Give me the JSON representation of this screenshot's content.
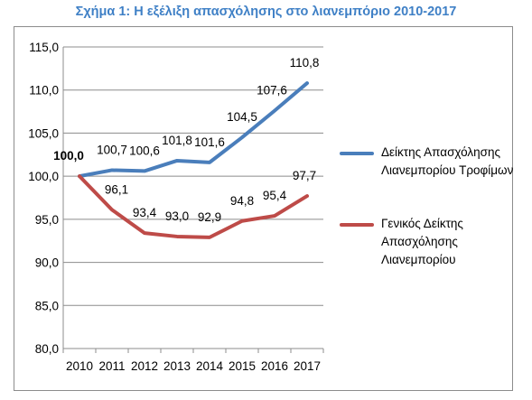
{
  "chart_data": {
    "type": "line",
    "title": "Σχήμα 1: Η εξέλιξη απασχόλησης στο λιανεμπόριο 2010-2017",
    "categories": [
      "2010",
      "2011",
      "2012",
      "2013",
      "2014",
      "2015",
      "2016",
      "2017"
    ],
    "ylim": [
      80,
      115
    ],
    "yticks": [
      "80,0",
      "85,0",
      "90,0",
      "95,0",
      "100,0",
      "105,0",
      "110,0",
      "115,0"
    ],
    "grid": true,
    "legend_position": "right",
    "series": [
      {
        "name": "Δείκτης Απασχόλησης Λιανεμπορίου Τροφίμων",
        "name_lines": [
          "Δείκτης Απασχόλησης",
          "Λιανεμπορίου Τροφίμων"
        ],
        "color": "#4a7ebb",
        "values": [
          100.0,
          100.7,
          100.6,
          101.8,
          101.6,
          104.5,
          107.6,
          110.8
        ],
        "labels": [
          "100,0",
          "100,7",
          "100,6",
          "101,8",
          "101,6",
          "104,5",
          "107,6",
          "110,8"
        ]
      },
      {
        "name": "Γενικός Δείκτης Απασχόλησης Λιανεμπορίου",
        "name_lines": [
          "Γενικός Δείκτης",
          "Απασχόλησης",
          "Λιανεμπορίου"
        ],
        "color": "#be4b48",
        "values": [
          100.0,
          96.1,
          93.4,
          93.0,
          92.9,
          94.8,
          95.4,
          97.7
        ],
        "labels": [
          "",
          "96,1",
          "93,4",
          "93,0",
          "92,9",
          "94,8",
          "95,4",
          "97,7"
        ]
      }
    ]
  }
}
